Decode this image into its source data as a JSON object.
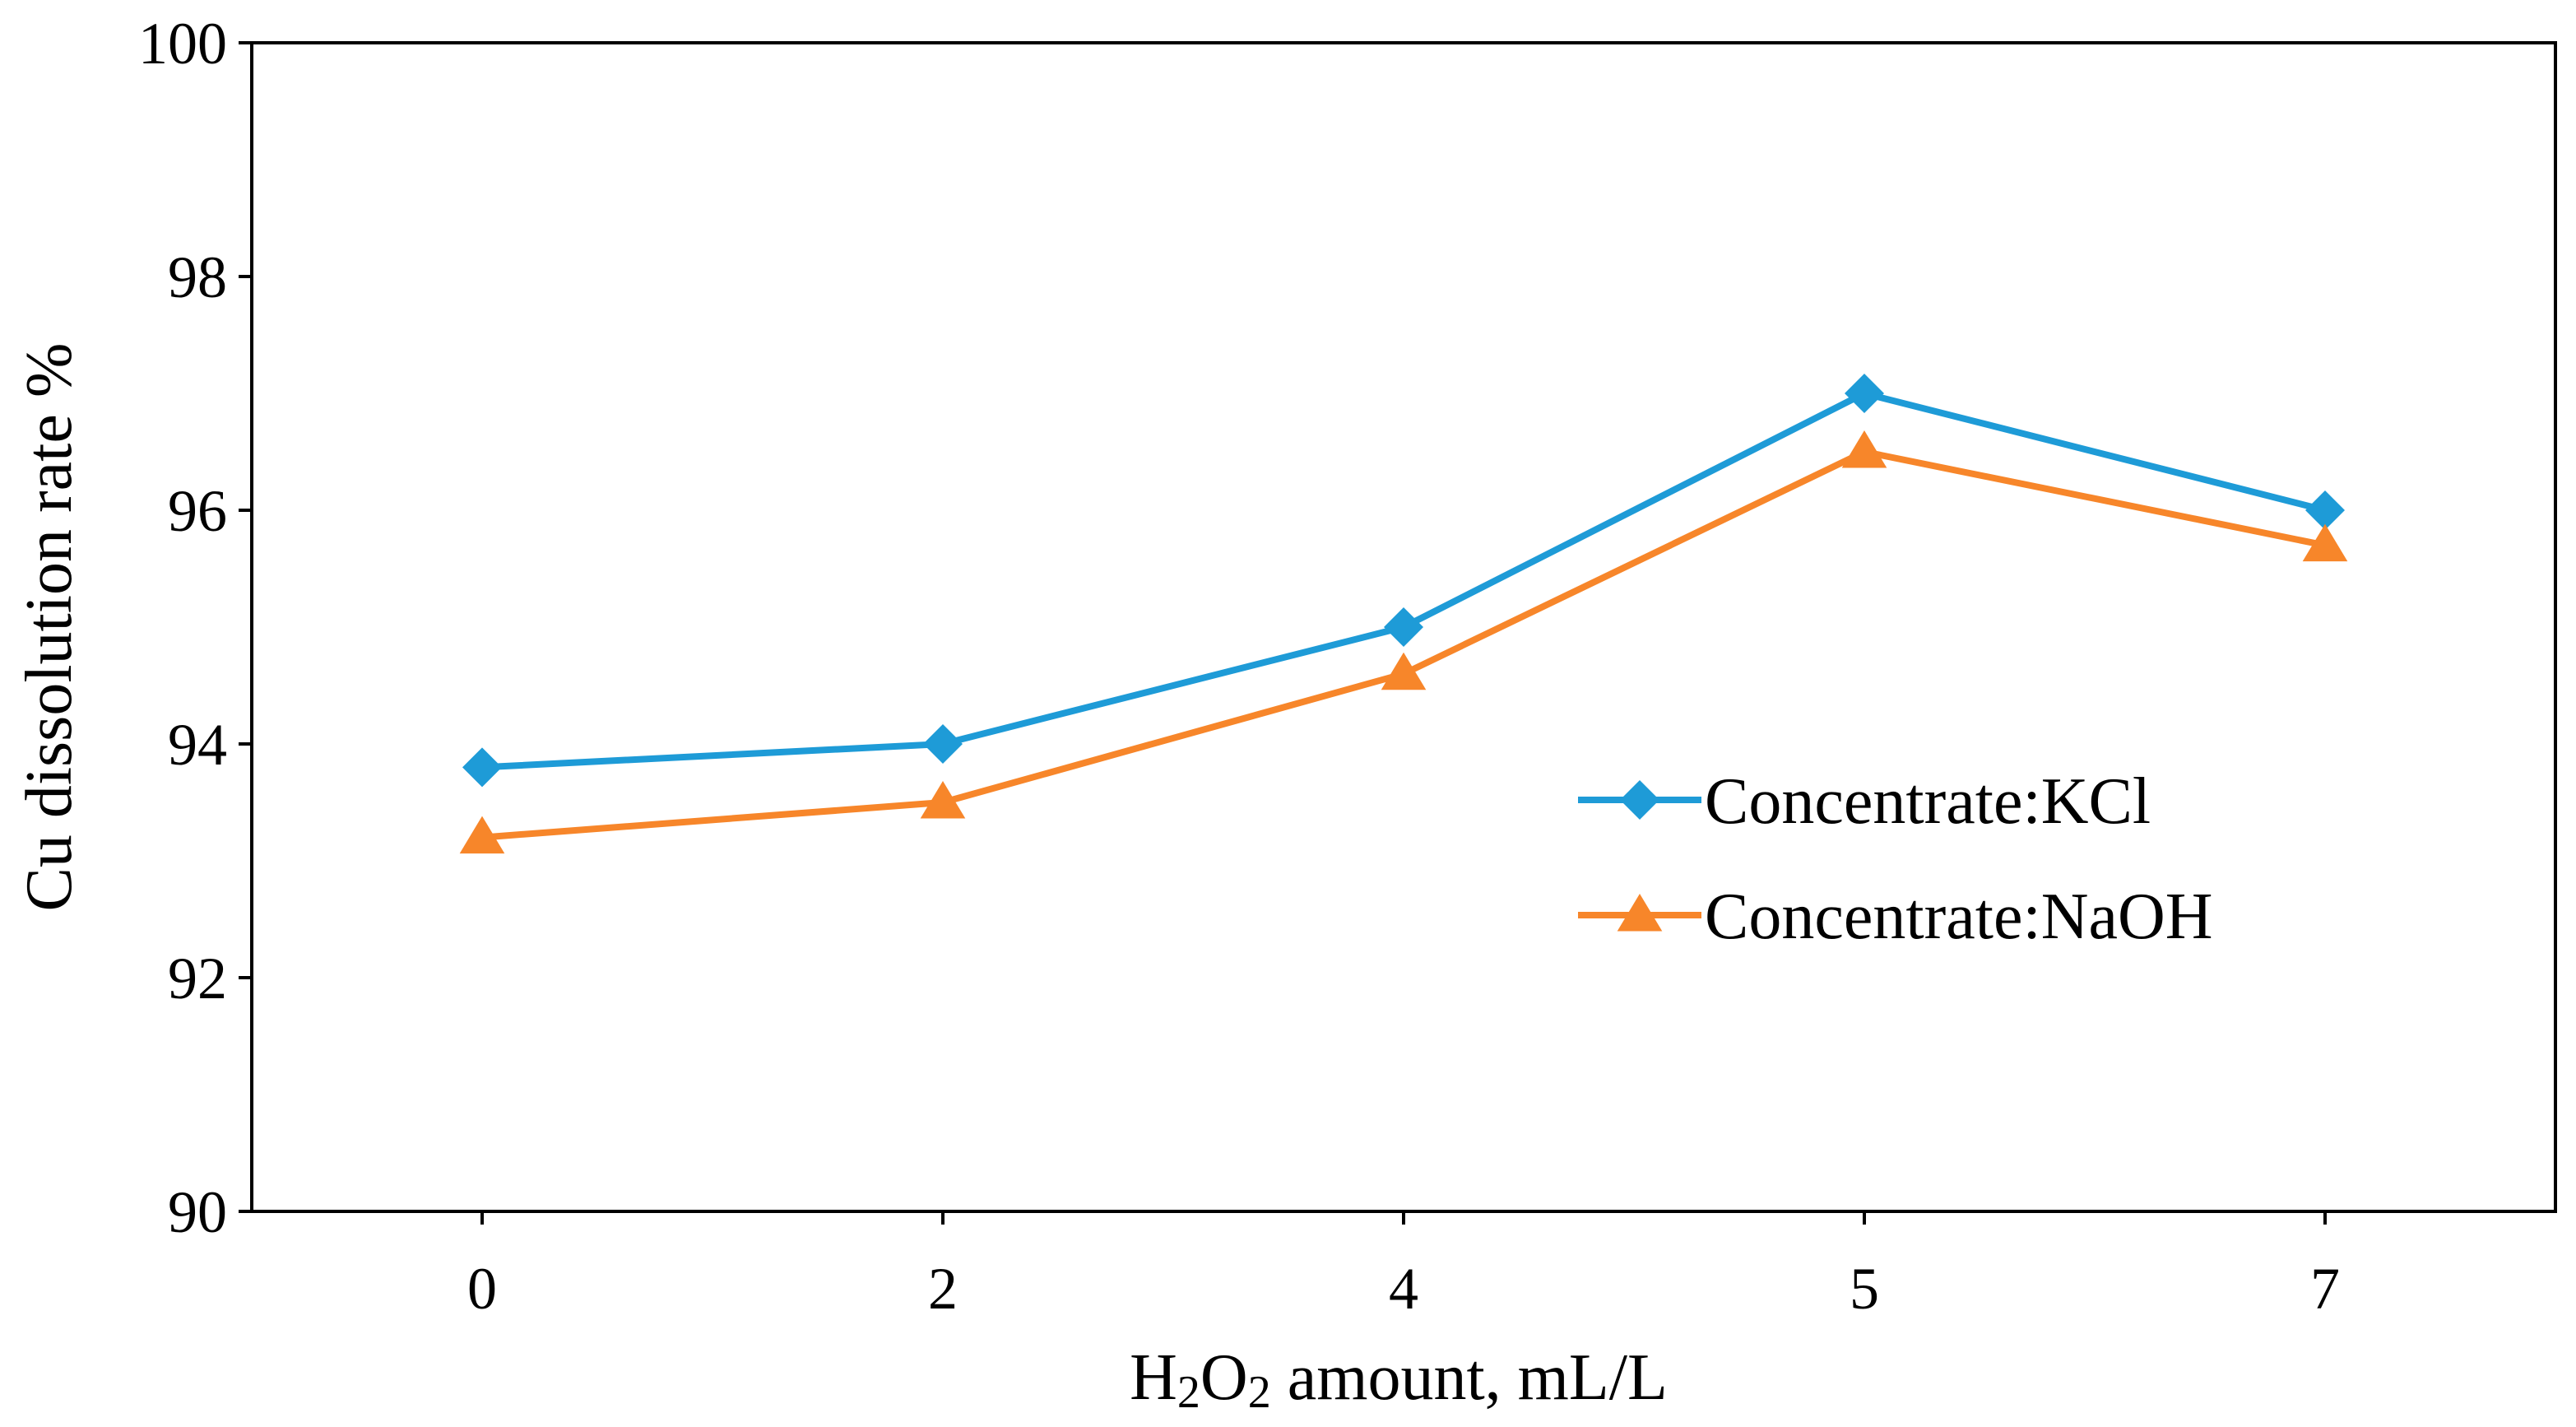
{
  "chart_data": {
    "type": "line",
    "title": "",
    "xlabel": "H2O2 amount, mL/L",
    "ylabel": "Cu dissolution rate %",
    "categories": [
      "0",
      "2",
      "4",
      "5",
      "7"
    ],
    "ylim": [
      90,
      100
    ],
    "yticks": [
      "90",
      "92",
      "94",
      "96",
      "98",
      "100"
    ],
    "grid": false,
    "legend_position": "right-middle",
    "series": [
      {
        "name": "Concentrate:KCl",
        "marker": "diamond",
        "color": "#1E9BD7",
        "values": [
          93.8,
          94.0,
          95.0,
          97.0,
          96.0
        ]
      },
      {
        "name": "Concentrate:NaOH",
        "marker": "triangle",
        "color": "#F7862A",
        "values": [
          93.2,
          93.5,
          94.6,
          96.5,
          95.7
        ]
      }
    ]
  }
}
